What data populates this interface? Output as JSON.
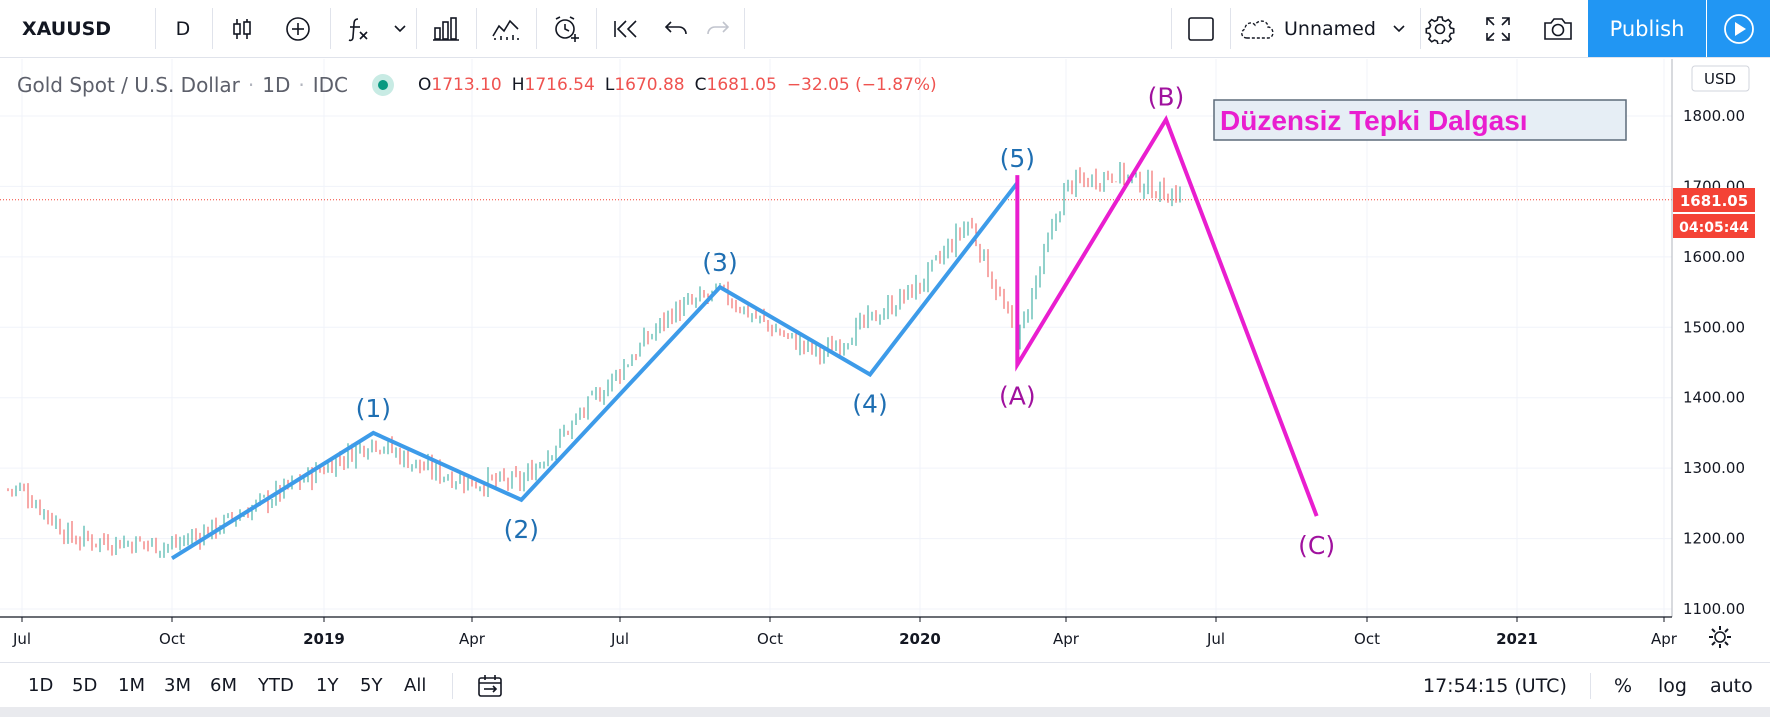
{
  "toolbar": {
    "symbol": "XAUUSD",
    "interval": "D",
    "icons": [
      "candles-icon",
      "add-indicator-icon",
      "function-icon",
      "chevron-down-icon",
      "bars-compare-icon",
      "line-chart-icon",
      "alert-icon",
      "replay-icon",
      "undo-icon",
      "redo-icon",
      "rectangle-icon",
      "cloud-icon",
      "settings-icon",
      "fullscreen-icon",
      "camera-icon",
      "play-icon"
    ],
    "layout_name": "Unnamed",
    "publish_label": "Publish"
  },
  "legend": {
    "title": "Gold Spot / U.S. Dollar",
    "interval": "1D",
    "source": "IDC",
    "open_key": "O",
    "open": "1713.10",
    "high_key": "H",
    "high": "1716.54",
    "low_key": "L",
    "low": "1670.88",
    "close_key": "C",
    "close": "1681.05",
    "change": "−32.05 (−1.87%)"
  },
  "colors": {
    "accent": "#2196f3",
    "wave_blue": "#3d9be9",
    "wave_magenta": "#e91ecf",
    "label_blue": "#1f6fb2",
    "label_purple": "#a0119e",
    "up_candle": "#26a69a",
    "down_candle": "#ef5350",
    "price_tag": "#f44336"
  },
  "chart_data": {
    "type": "candlestick",
    "currency": "USD",
    "x_axis_labels": [
      "Jul",
      "Oct",
      "2019",
      "Apr",
      "Jul",
      "Oct",
      "2020",
      "Apr",
      "Jul",
      "Oct",
      "2021",
      "Apr"
    ],
    "y_axis_labels": [
      "1800.00",
      "1700.00",
      "1600.00",
      "1500.00",
      "1400.00",
      "1300.00",
      "1200.00",
      "1100.00"
    ],
    "ylim": [
      1100,
      1800
    ],
    "current_price": "1681.05",
    "countdown": "04:05:44",
    "price_path_anchors": [
      {
        "date": "2018-07",
        "price": 1270
      },
      {
        "date": "2018-08",
        "price": 1200
      },
      {
        "date": "2018-10",
        "price": 1190
      },
      {
        "date": "2018-11",
        "price": 1220
      },
      {
        "date": "2019-02",
        "price": 1340
      },
      {
        "date": "2019-03",
        "price": 1300
      },
      {
        "date": "2019-04",
        "price": 1280
      },
      {
        "date": "2019-05",
        "price": 1280
      },
      {
        "date": "2019-08",
        "price": 1520
      },
      {
        "date": "2019-09",
        "price": 1550
      },
      {
        "date": "2019-10",
        "price": 1500
      },
      {
        "date": "2019-11",
        "price": 1460
      },
      {
        "date": "2020-01",
        "price": 1560
      },
      {
        "date": "2020-02",
        "price": 1650
      },
      {
        "date": "2020-03",
        "price": 1480
      },
      {
        "date": "2020-04",
        "price": 1700
      },
      {
        "date": "2020-05",
        "price": 1720
      },
      {
        "date": "2020-06",
        "price": 1690
      }
    ],
    "impulse_wave": [
      {
        "label": "",
        "date": "2018-10",
        "price": 1172
      },
      {
        "label": "(1)",
        "date": "2019-02",
        "price": 1350
      },
      {
        "label": "(2)",
        "date": "2019-05",
        "price": 1255
      },
      {
        "label": "(3)",
        "date": "2019-09",
        "price": 1557
      },
      {
        "label": "(4)",
        "date": "2019-12",
        "price": 1433
      },
      {
        "label": "(5)",
        "date": "2020-03",
        "price": 1705
      }
    ],
    "corrective_wave": [
      {
        "label": "",
        "date": "2020-03",
        "price": 1716
      },
      {
        "label": "(A)",
        "date": "2020-03",
        "price": 1447
      },
      {
        "label": "(B)",
        "date": "2020-06",
        "price": 1795
      },
      {
        "label": "(C)",
        "date": "2020-09",
        "price": 1232
      }
    ],
    "annotation": "Düzensiz Tepki Dalgası"
  },
  "bottom": {
    "ranges": [
      "1D",
      "5D",
      "1M",
      "3M",
      "6M",
      "YTD",
      "1Y",
      "5Y",
      "All"
    ],
    "time": "17:54:15 (UTC)",
    "percent": "%",
    "log": "log",
    "auto": "auto"
  }
}
